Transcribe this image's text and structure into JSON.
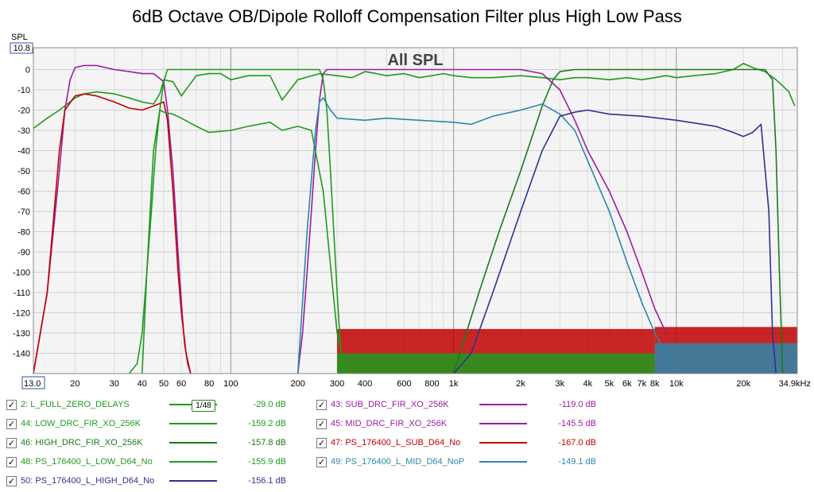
{
  "title": "6dB Octave OB/Dipole Rolloff Compensation Filter plus High Low Pass",
  "chart_data": {
    "type": "line",
    "title": "All SPL",
    "ylabel": "SPL",
    "xscale": "log",
    "xlim": [
      13.0,
      34900
    ],
    "ylim": [
      -150,
      10.8
    ],
    "x_ticks": [
      {
        "v": 13,
        "label": "13.0"
      },
      {
        "v": 20,
        "label": "20"
      },
      {
        "v": 30,
        "label": "30"
      },
      {
        "v": 40,
        "label": "40"
      },
      {
        "v": 50,
        "label": "50"
      },
      {
        "v": 60,
        "label": "60"
      },
      {
        "v": 80,
        "label": "80"
      },
      {
        "v": 100,
        "label": "100"
      },
      {
        "v": 200,
        "label": "200"
      },
      {
        "v": 300,
        "label": "300"
      },
      {
        "v": 400,
        "label": "400"
      },
      {
        "v": 600,
        "label": "600"
      },
      {
        "v": 800,
        "label": "800"
      },
      {
        "v": 1000,
        "label": "1k"
      },
      {
        "v": 2000,
        "label": "2k"
      },
      {
        "v": 3000,
        "label": "3k"
      },
      {
        "v": 4000,
        "label": "4k"
      },
      {
        "v": 5000,
        "label": "5k"
      },
      {
        "v": 6000,
        "label": "6k"
      },
      {
        "v": 7000,
        "label": "7k"
      },
      {
        "v": 8000,
        "label": "8k"
      },
      {
        "v": 10000,
        "label": "10k"
      },
      {
        "v": 20000,
        "label": "20k"
      },
      {
        "v": 34900,
        "label": "34.9kHz"
      }
    ],
    "y_ticks": [
      {
        "v": 10.8,
        "label": "10.8"
      },
      {
        "v": 0,
        "label": "0"
      },
      {
        "v": -10,
        "label": "-10"
      },
      {
        "v": -20,
        "label": "-20"
      },
      {
        "v": -30,
        "label": "-30"
      },
      {
        "v": -40,
        "label": "-40"
      },
      {
        "v": -50,
        "label": "-50"
      },
      {
        "v": -60,
        "label": "-60"
      },
      {
        "v": -70,
        "label": "-70"
      },
      {
        "v": -80,
        "label": "-80"
      },
      {
        "v": -90,
        "label": "-90"
      },
      {
        "v": -100,
        "label": "-100"
      },
      {
        "v": -110,
        "label": "-110"
      },
      {
        "v": -120,
        "label": "-120"
      },
      {
        "v": -130,
        "label": "-130"
      },
      {
        "v": -140,
        "label": "-140"
      }
    ],
    "series": [
      {
        "name": "L_FULL_ZERO_DELAYS",
        "color": "#1e9a1e",
        "width": 1.6,
        "x": [
          13,
          15,
          17,
          20,
          22,
          25,
          30,
          35,
          40,
          45,
          48,
          50,
          55,
          60,
          70,
          80,
          90,
          100,
          120,
          150,
          170,
          200,
          250,
          300,
          350,
          400,
          450,
          500,
          600,
          700,
          800,
          900,
          1000,
          1200,
          1500,
          2000,
          2500,
          3000,
          3500,
          4000,
          5000,
          6000,
          7000,
          8000,
          9000,
          10000,
          12000,
          15000,
          18000,
          20000,
          22000,
          25000,
          28000,
          30000,
          32000,
          34000
        ],
        "y": [
          -29,
          -24,
          -20,
          -14,
          -12,
          -11,
          -12,
          -14,
          -16,
          -17,
          -12,
          -5,
          -6,
          -13,
          -3,
          -2,
          -2,
          -5,
          -3,
          -3,
          -15,
          -5,
          -2,
          -3,
          -4,
          -1,
          -2,
          -3,
          -2,
          -4,
          -3,
          -2,
          -3,
          -4,
          -4,
          -3,
          -4,
          -5,
          -4,
          -4,
          -5,
          -4,
          -5,
          -4,
          -3,
          -4,
          -3,
          -2,
          0,
          3,
          1,
          -1,
          -5,
          -8,
          -11,
          -18
        ]
      },
      {
        "name": "SUB_DRC_FIR_XO_256K",
        "color": "#9a1ea0",
        "width": 1.6,
        "x": [
          13,
          15,
          17,
          18,
          19,
          20,
          22,
          25,
          30,
          35,
          40,
          45,
          50,
          52,
          55,
          58,
          60,
          62,
          64,
          66
        ],
        "y": [
          -150,
          -110,
          -50,
          -20,
          -5,
          1,
          2,
          2,
          0,
          -1,
          -2,
          -2,
          -6,
          -20,
          -50,
          -90,
          -115,
          -135,
          -145,
          -150
        ]
      },
      {
        "name": "MID_DRC_FIR_XO_256K",
        "color": "#9a1ea0",
        "width": 1.6,
        "x": [
          200,
          210,
          220,
          230,
          240,
          250,
          260,
          270,
          280,
          300,
          500,
          1000,
          2000,
          2500,
          3000,
          3500,
          4000,
          5000,
          6000,
          7000,
          8000,
          9000
        ],
        "y": [
          -150,
          -130,
          -100,
          -70,
          -40,
          -15,
          -2,
          0,
          0,
          0,
          0,
          0,
          0,
          -2,
          -10,
          -25,
          -40,
          -60,
          -80,
          -100,
          -118,
          -130
        ]
      },
      {
        "name": "PS_176400_L_SUB_D64_No",
        "color": "#c00000",
        "width": 1.6,
        "x": [
          13,
          15,
          17,
          18,
          20,
          22,
          25,
          30,
          35,
          40,
          45,
          50,
          52,
          55,
          58,
          60,
          63,
          66
        ],
        "y": [
          -150,
          -110,
          -40,
          -20,
          -13,
          -12,
          -13,
          -16,
          -19,
          -20,
          -18,
          -16,
          -25,
          -60,
          -100,
          -120,
          -140,
          -150
        ]
      },
      {
        "name": "LOW_DRC_FIR_XO_256K",
        "color": "#1e9a1e",
        "width": 1.6,
        "x": [
          35,
          38,
          40,
          42,
          44,
          46,
          48,
          50,
          52,
          55,
          60,
          100,
          200,
          250,
          260,
          270,
          280,
          290,
          300,
          310,
          320
        ],
        "y": [
          -150,
          -145,
          -130,
          -100,
          -70,
          -40,
          -20,
          -6,
          0,
          0,
          0,
          0,
          0,
          0,
          -5,
          -20,
          -50,
          -80,
          -110,
          -135,
          -150
        ]
      },
      {
        "name": "HIGH_DRC_FIR_XO_256K",
        "color": "#1a7a1a",
        "width": 1.6,
        "x": [
          1000,
          1300,
          1600,
          2000,
          2300,
          2500,
          2800,
          3000,
          3500,
          5000,
          10000,
          20000,
          25000,
          27000,
          28000,
          29000,
          30000
        ],
        "y": [
          -150,
          -110,
          -80,
          -50,
          -30,
          -18,
          -5,
          -1,
          0,
          0,
          0,
          0,
          0,
          -5,
          -40,
          -100,
          -150
        ]
      },
      {
        "name": "PS_176400_L_LOW_D64_No",
        "color": "#1e9a1e",
        "width": 1.6,
        "x": [
          40,
          42,
          45,
          48,
          50,
          55,
          60,
          70,
          80,
          100,
          120,
          150,
          170,
          200,
          230,
          260,
          300,
          330
        ],
        "y": [
          -150,
          -100,
          -40,
          -20,
          -21,
          -22,
          -24,
          -28,
          -31,
          -30,
          -28,
          -26,
          -30,
          -28,
          -30,
          -60,
          -130,
          -150
        ]
      },
      {
        "name": "PS_176400_L_MID_D64_NoP",
        "color": "#2e86ab",
        "width": 1.6,
        "x": [
          200,
          220,
          240,
          250,
          260,
          280,
          300,
          400,
          500,
          700,
          1000,
          1200,
          1500,
          2000,
          2500,
          3000,
          3500,
          4000,
          5000,
          6000,
          7000,
          8000,
          10000
        ],
        "y": [
          -150,
          -80,
          -30,
          -16,
          -14,
          -20,
          -24,
          -25,
          -24,
          -25,
          -26,
          -27,
          -23,
          -20,
          -17,
          -22,
          -30,
          -45,
          -70,
          -95,
          -115,
          -130,
          -150
        ]
      },
      {
        "name": "PS_176400_L_HIGH_D64_No",
        "color": "#303090",
        "width": 1.6,
        "x": [
          1000,
          1200,
          1500,
          2000,
          2500,
          3000,
          3500,
          4000,
          5000,
          7000,
          10000,
          15000,
          18000,
          20000,
          22000,
          24000,
          26000,
          27000,
          28000
        ],
        "y": [
          -150,
          -140,
          -110,
          -70,
          -40,
          -23,
          -21,
          -20,
          -22,
          -23,
          -25,
          -28,
          -31,
          -33,
          -31,
          -27,
          -70,
          -130,
          -150
        ]
      }
    ]
  },
  "legend": [
    {
      "checked": "✓",
      "label": "2: L_FULL_ZERO_DELAYS",
      "smoothing": "1/48",
      "value": "-29.0 dB",
      "color": "#1e9a1e"
    },
    {
      "checked": "✓",
      "label": "43: SUB_DRC_FIR_XO_256K",
      "value": "-119.0 dB",
      "color": "#9a1ea0"
    },
    {
      "checked": "✓",
      "label": "44: LOW_DRC_FIR_XO_256K",
      "value": "-159.2 dB",
      "color": "#1e9a1e"
    },
    {
      "checked": "✓",
      "label": "45: MID_DRC_FIR_XO_256K",
      "value": "-145.5 dB",
      "color": "#9a1ea0"
    },
    {
      "checked": "✓",
      "label": "46: HIGH_DRC_FIR_XO_256K",
      "value": "-157.8 dB",
      "color": "#1a7a1a"
    },
    {
      "checked": "✓",
      "label": "47: PS_176400_L_SUB_D64_No",
      "value": "-167.0 dB",
      "color": "#c00000"
    },
    {
      "checked": "✓",
      "label": "48: PS_176400_L_LOW_D64_No",
      "value": "-155.9 dB",
      "color": "#1e9a1e"
    },
    {
      "checked": "✓",
      "label": "49: PS_176400_L_MID_D64_NoP",
      "value": "-149.1 dB",
      "color": "#2e86ab"
    },
    {
      "checked": "✓",
      "label": "50: PS_176400_L_HIGH_D64_No",
      "value": "-156.1 dB",
      "color": "#303090"
    }
  ]
}
